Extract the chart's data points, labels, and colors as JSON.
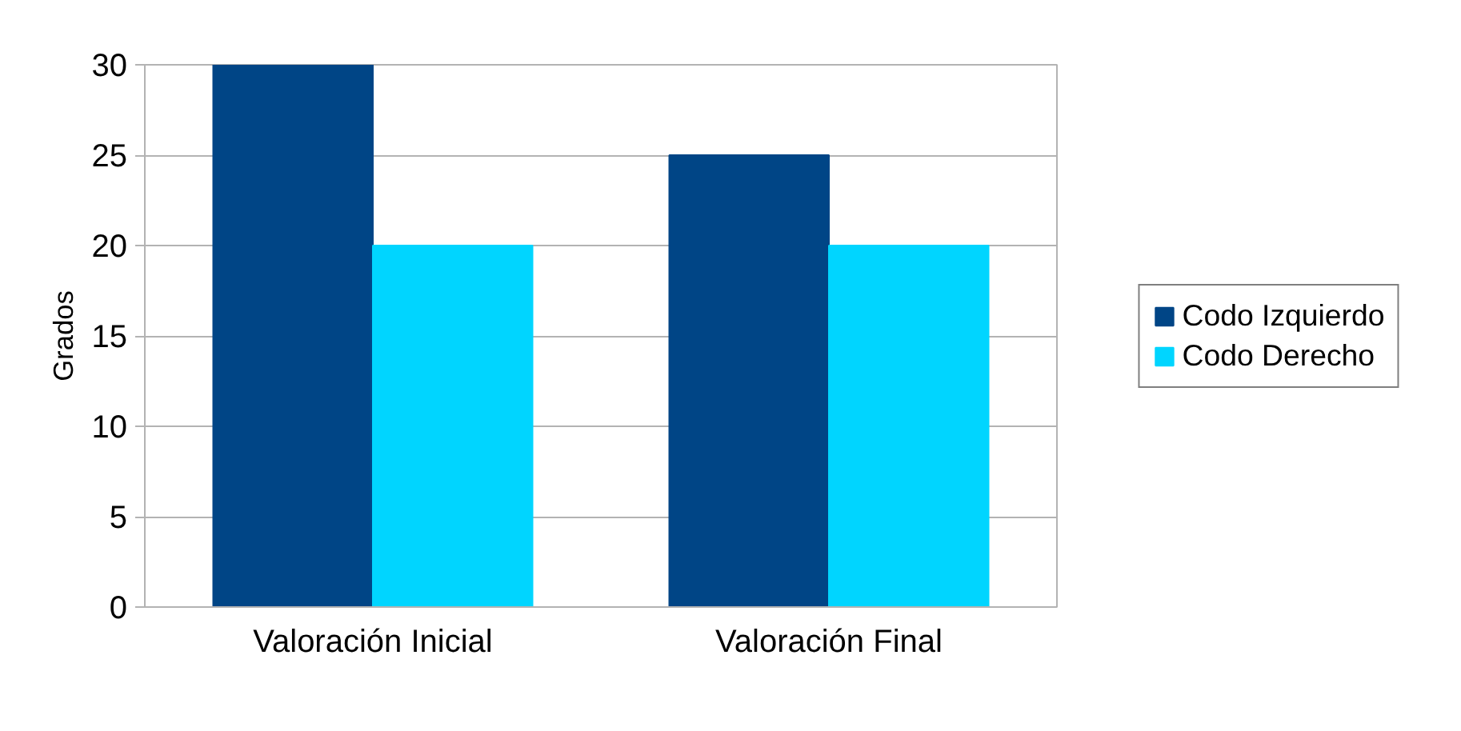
{
  "chart_data": {
    "type": "bar",
    "ylabel": "Grados",
    "categories": [
      "Valoración Inicial",
      "Valoración Final"
    ],
    "series": [
      {
        "name": "Codo Izquierdo",
        "color": "#004586",
        "values": [
          30,
          25
        ]
      },
      {
        "name": "Codo Derecho",
        "color": "#00d5ff",
        "values": [
          20,
          20
        ]
      }
    ],
    "ylim": [
      0,
      30
    ],
    "yticks": [
      0,
      5,
      10,
      15,
      20,
      25,
      30
    ],
    "grid": "y",
    "legend": "right"
  }
}
